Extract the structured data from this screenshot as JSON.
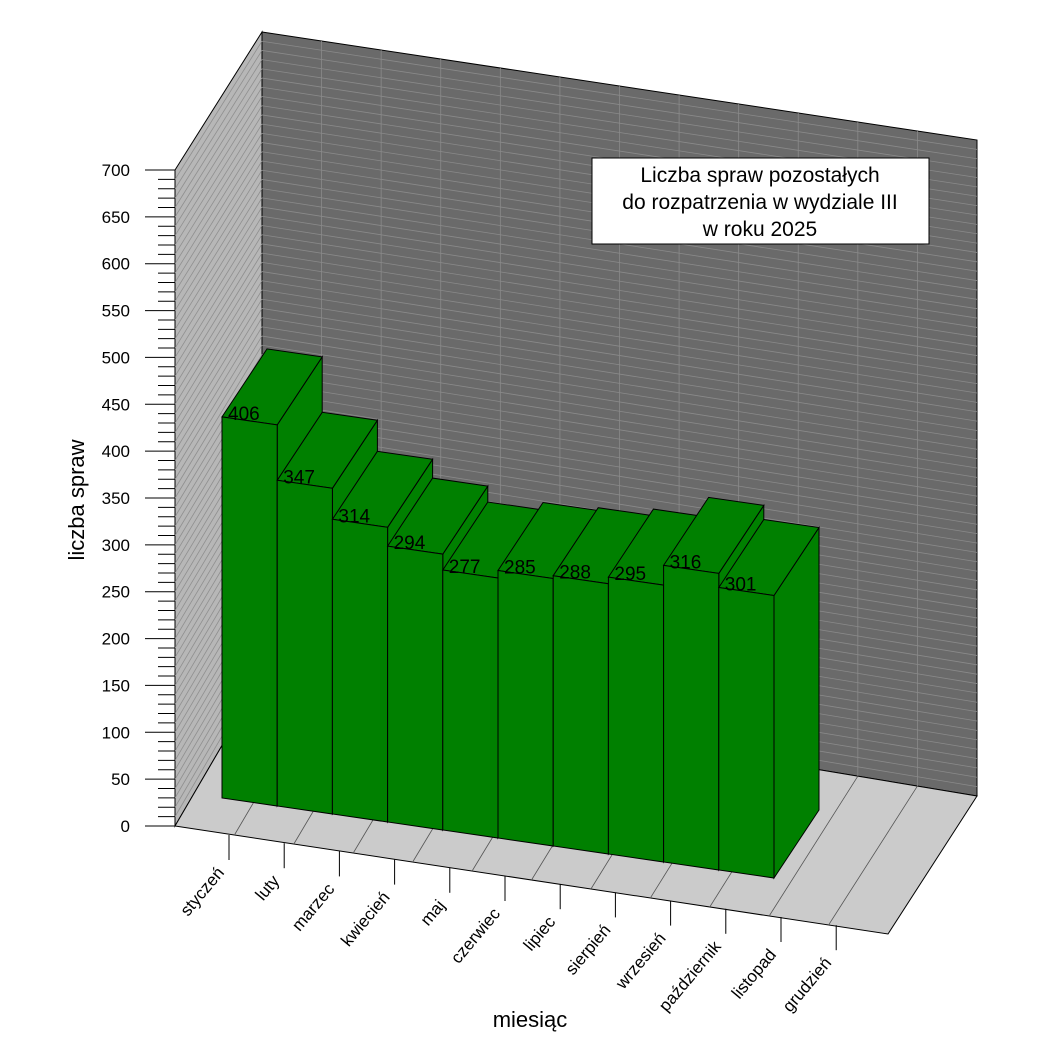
{
  "chart_data": {
    "type": "bar",
    "title": [
      "Liczba spraw pozostałych",
      "do rozpatrzenia w  wydziale III",
      "w roku 2025"
    ],
    "xlabel": "miesiąc",
    "ylabel": "liczba spraw",
    "categories": [
      "styczeń",
      "luty",
      "marzec",
      "kwiecień",
      "maj",
      "czerwiec",
      "lipiec",
      "sierpień",
      "wrzesień",
      "październik",
      "listopad",
      "grudzień"
    ],
    "values": [
      406,
      347,
      314,
      294,
      277,
      285,
      288,
      295,
      316,
      301,
      null,
      null
    ],
    "ylim": [
      0,
      700
    ],
    "yticks": [
      0,
      50,
      100,
      150,
      200,
      250,
      300,
      350,
      400,
      450,
      500,
      550,
      600,
      650,
      700
    ],
    "grid": true,
    "three_d": true,
    "colors": {
      "bar": "#008000",
      "back_wall": "#6a6a6a",
      "side_wall": "#b7b7b7",
      "floor": "#cbcbcb",
      "grid": "#8a8a8a"
    }
  }
}
